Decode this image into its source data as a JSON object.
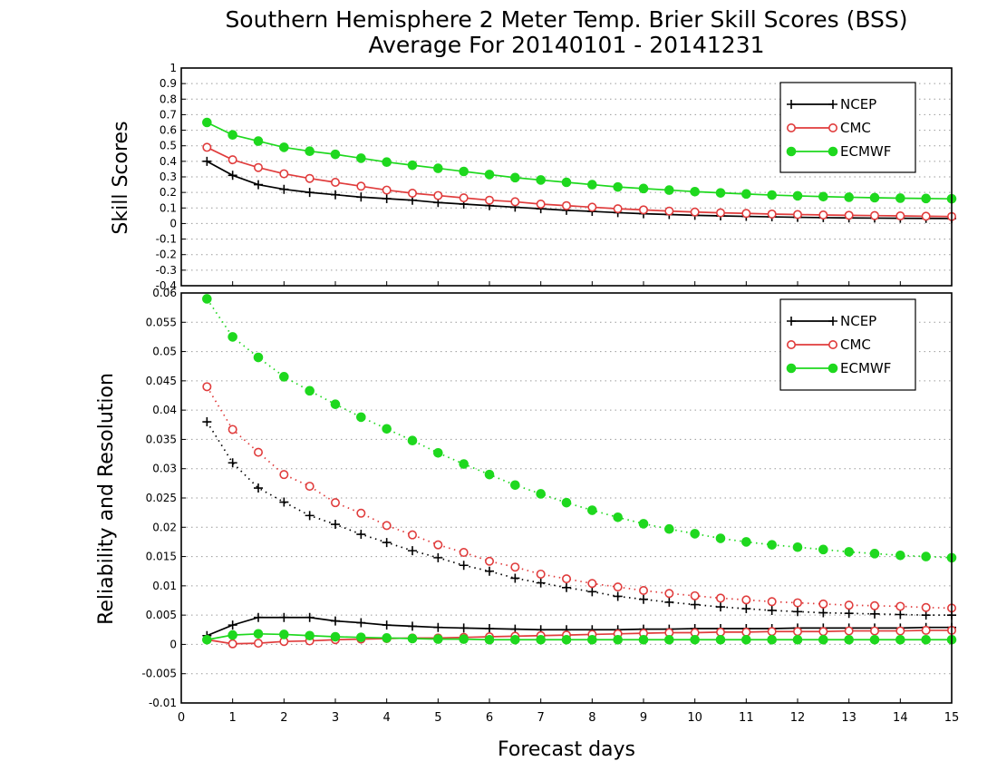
{
  "title_line1": "Southern Hemisphere 2 Meter Temp. Brier Skill Scores (BSS)",
  "title_line2": "Average For 20140101 - 20141231",
  "xlabel": "Forecast days",
  "colors": {
    "NCEP": "#000000",
    "CMC": "#e03c3c",
    "ECMWF": "#1ed81e",
    "grid": "#9a9a9a"
  },
  "chart_data": [
    {
      "type": "line",
      "ylabel": "Skill Scores",
      "xlim": [
        0,
        15
      ],
      "ylim": [
        -0.4,
        1
      ],
      "x_ticks": [
        0,
        1,
        2,
        3,
        4,
        5,
        6,
        7,
        8,
        9,
        10,
        11,
        12,
        13,
        14,
        15
      ],
      "y_ticks": [
        "-0.4",
        "-0.3",
        "-0.2",
        "-0.1",
        "0",
        "0.1",
        "0.2",
        "0.3",
        "0.4",
        "0.5",
        "0.6",
        "0.7",
        "0.8",
        "0.9",
        "1"
      ],
      "grid": true,
      "legend_position": "top-right",
      "x": [
        0.5,
        1,
        1.5,
        2,
        2.5,
        3,
        3.5,
        4,
        4.5,
        5,
        5.5,
        6,
        6.5,
        7,
        7.5,
        8,
        8.5,
        9,
        9.5,
        10,
        10.5,
        11,
        11.5,
        12,
        12.5,
        13,
        13.5,
        14,
        14.5,
        15
      ],
      "series": [
        {
          "name": "NCEP",
          "marker": "plus",
          "line": "solid",
          "values": [
            0.4,
            0.31,
            0.25,
            0.22,
            0.2,
            0.185,
            0.17,
            0.16,
            0.15,
            0.135,
            0.125,
            0.115,
            0.105,
            0.095,
            0.085,
            0.078,
            0.07,
            0.063,
            0.058,
            0.053,
            0.049,
            0.046,
            0.043,
            0.04,
            0.038,
            0.036,
            0.035,
            0.034,
            0.033,
            0.032
          ]
        },
        {
          "name": "CMC",
          "marker": "open-circle",
          "line": "solid",
          "values": [
            0.49,
            0.41,
            0.36,
            0.32,
            0.29,
            0.265,
            0.24,
            0.215,
            0.195,
            0.18,
            0.165,
            0.15,
            0.14,
            0.125,
            0.115,
            0.105,
            0.095,
            0.088,
            0.08,
            0.074,
            0.069,
            0.065,
            0.061,
            0.058,
            0.055,
            0.053,
            0.051,
            0.049,
            0.047,
            0.045
          ]
        },
        {
          "name": "ECMWF",
          "marker": "filled-circle",
          "line": "solid",
          "values": [
            0.65,
            0.57,
            0.53,
            0.49,
            0.465,
            0.445,
            0.42,
            0.395,
            0.375,
            0.355,
            0.335,
            0.315,
            0.295,
            0.28,
            0.265,
            0.25,
            0.235,
            0.225,
            0.215,
            0.205,
            0.197,
            0.19,
            0.183,
            0.178,
            0.173,
            0.169,
            0.166,
            0.163,
            0.161,
            0.159
          ]
        }
      ]
    },
    {
      "type": "line",
      "ylabel": "Reliability and Resolution",
      "xlim": [
        0,
        15
      ],
      "ylim": [
        -0.01,
        0.06
      ],
      "x_ticks": [
        0,
        1,
        2,
        3,
        4,
        5,
        6,
        7,
        8,
        9,
        10,
        11,
        12,
        13,
        14,
        15
      ],
      "y_ticks": [
        "-0.01",
        "-0.005",
        "0",
        "0.005",
        "0.01",
        "0.015",
        "0.02",
        "0.025",
        "0.03",
        "0.035",
        "0.04",
        "0.045",
        "0.05",
        "0.055",
        "0.06"
      ],
      "grid": true,
      "legend_position": "top-right",
      "x": [
        0.5,
        1,
        1.5,
        2,
        2.5,
        3,
        3.5,
        4,
        4.5,
        5,
        5.5,
        6,
        6.5,
        7,
        7.5,
        8,
        8.5,
        9,
        9.5,
        10,
        10.5,
        11,
        11.5,
        12,
        12.5,
        13,
        13.5,
        14,
        14.5,
        15
      ],
      "series": [
        {
          "name": "NCEP",
          "marker": "plus",
          "line": "dotted",
          "role": "resolution",
          "values": [
            0.038,
            0.031,
            0.0267,
            0.0243,
            0.022,
            0.0205,
            0.0188,
            0.0174,
            0.016,
            0.0148,
            0.0135,
            0.0125,
            0.0113,
            0.0105,
            0.0097,
            0.009,
            0.0082,
            0.0077,
            0.0072,
            0.0068,
            0.0064,
            0.0061,
            0.0058,
            0.0056,
            0.0054,
            0.0053,
            0.0052,
            0.0051,
            0.005,
            0.005
          ]
        },
        {
          "name": "CMC",
          "marker": "open-circle",
          "line": "dotted",
          "role": "resolution",
          "values": [
            0.044,
            0.0367,
            0.0328,
            0.029,
            0.027,
            0.0242,
            0.0224,
            0.0203,
            0.0187,
            0.017,
            0.0157,
            0.0142,
            0.0132,
            0.012,
            0.0112,
            0.0104,
            0.0098,
            0.0092,
            0.0087,
            0.0083,
            0.0079,
            0.0076,
            0.0073,
            0.0071,
            0.0069,
            0.0067,
            0.0066,
            0.0065,
            0.0063,
            0.0062
          ]
        },
        {
          "name": "ECMWF",
          "marker": "filled-circle",
          "line": "dotted",
          "role": "resolution",
          "values": [
            0.059,
            0.0525,
            0.049,
            0.0457,
            0.0433,
            0.041,
            0.0388,
            0.0368,
            0.0348,
            0.0327,
            0.0308,
            0.029,
            0.0272,
            0.0257,
            0.0242,
            0.0229,
            0.0217,
            0.0206,
            0.0197,
            0.0189,
            0.0181,
            0.0175,
            0.017,
            0.0166,
            0.0162,
            0.0158,
            0.0155,
            0.0152,
            0.015,
            0.0148
          ]
        },
        {
          "name": "NCEP",
          "marker": "plus",
          "line": "solid",
          "role": "reliability",
          "values": [
            0.0015,
            0.0033,
            0.0046,
            0.0046,
            0.0046,
            0.004,
            0.0037,
            0.0033,
            0.0031,
            0.0029,
            0.0028,
            0.0027,
            0.0026,
            0.0025,
            0.0025,
            0.0025,
            0.0025,
            0.0026,
            0.0026,
            0.0027,
            0.0027,
            0.0027,
            0.0027,
            0.0028,
            0.0028,
            0.0028,
            0.0028,
            0.0028,
            0.0029,
            0.0029
          ]
        },
        {
          "name": "CMC",
          "marker": "open-circle",
          "line": "solid",
          "role": "reliability",
          "values": [
            0.0008,
            0.0001,
            0.0002,
            0.0005,
            0.0006,
            0.0008,
            0.0009,
            0.001,
            0.0011,
            0.0011,
            0.0012,
            0.0013,
            0.0014,
            0.0015,
            0.0016,
            0.0017,
            0.0018,
            0.0019,
            0.002,
            0.002,
            0.0021,
            0.0021,
            0.0022,
            0.0022,
            0.0022,
            0.0023,
            0.0023,
            0.0023,
            0.0024,
            0.0024
          ]
        },
        {
          "name": "ECMWF",
          "marker": "filled-circle",
          "line": "solid",
          "role": "reliability",
          "values": [
            0.0008,
            0.0016,
            0.0018,
            0.0017,
            0.0015,
            0.0013,
            0.0012,
            0.0011,
            0.001,
            0.0009,
            0.0009,
            0.0008,
            0.0008,
            0.0008,
            0.0008,
            0.0008,
            0.0008,
            0.0008,
            0.0008,
            0.0008,
            0.0008,
            0.0008,
            0.0008,
            0.0008,
            0.0008,
            0.0008,
            0.0008,
            0.0008,
            0.0008,
            0.0008
          ]
        }
      ]
    }
  ]
}
